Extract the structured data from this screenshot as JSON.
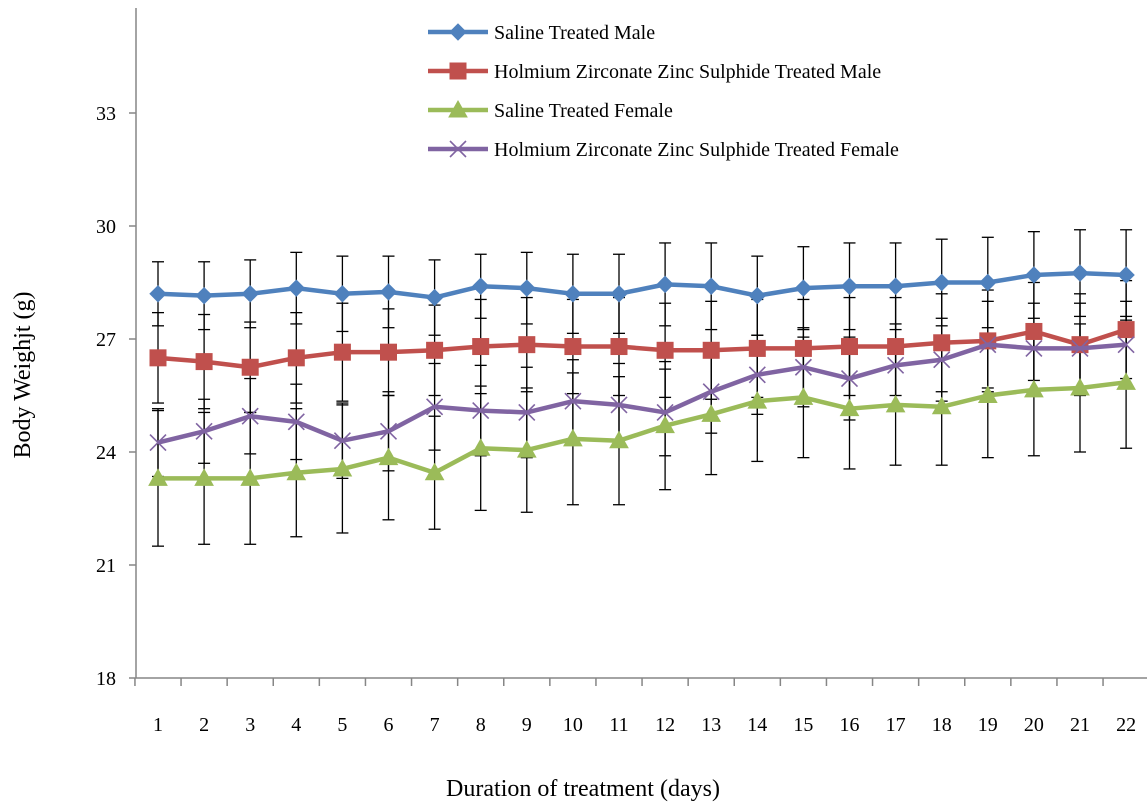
{
  "chart_data": {
    "type": "line",
    "title": "",
    "xlabel": "Duration of treatment (days)",
    "ylabel": "Body Weighjt (g)",
    "x": [
      1,
      2,
      3,
      4,
      5,
      6,
      7,
      8,
      9,
      10,
      11,
      12,
      13,
      14,
      15,
      16,
      17,
      18,
      19,
      20,
      21,
      22
    ],
    "ylim": [
      18,
      36
    ],
    "yticks": [
      18,
      21,
      24,
      27,
      30,
      33
    ],
    "grid": false,
    "legend_position": "top",
    "error_bars": true,
    "series": [
      {
        "name": "Saline Treated Male",
        "color": "#4F81BD",
        "marker": "diamond",
        "values": [
          28.2,
          28.15,
          28.2,
          28.35,
          28.2,
          28.25,
          28.1,
          28.4,
          28.35,
          28.2,
          28.2,
          28.45,
          28.4,
          28.15,
          28.35,
          28.4,
          28.4,
          28.5,
          28.5,
          28.7,
          28.75,
          28.7
        ],
        "errors": [
          0.85,
          0.9,
          0.9,
          0.95,
          1.0,
          0.95,
          1.0,
          0.85,
          0.95,
          1.05,
          1.05,
          1.1,
          1.15,
          1.05,
          1.1,
          1.15,
          1.15,
          1.15,
          1.2,
          1.15,
          1.15,
          1.2
        ]
      },
      {
        "name": "Holmium Zirconate Zinc Sulphide Treated Male",
        "color": "#C0504D",
        "marker": "square",
        "values": [
          26.5,
          26.4,
          26.25,
          26.5,
          26.65,
          26.65,
          26.7,
          26.8,
          26.85,
          26.8,
          26.8,
          26.7,
          26.7,
          26.75,
          26.75,
          26.8,
          26.8,
          26.9,
          26.95,
          27.2,
          26.85,
          27.25
        ],
        "errors": [
          1.2,
          1.25,
          1.2,
          1.2,
          1.3,
          1.15,
          1.2,
          1.25,
          1.25,
          1.25,
          1.3,
          1.25,
          1.3,
          1.3,
          1.3,
          1.3,
          1.3,
          1.3,
          1.35,
          1.3,
          1.35,
          1.3
        ]
      },
      {
        "name": "Saline Treated Female",
        "color": "#9BBB59",
        "marker": "triangle",
        "values": [
          23.3,
          23.3,
          23.3,
          23.45,
          23.55,
          23.85,
          23.45,
          24.1,
          24.05,
          24.35,
          24.3,
          24.7,
          25.0,
          25.35,
          25.45,
          25.15,
          25.25,
          25.2,
          25.5,
          25.65,
          25.7,
          25.85
        ],
        "errors": [
          1.8,
          1.75,
          1.75,
          1.7,
          1.7,
          1.65,
          1.5,
          1.65,
          1.65,
          1.75,
          1.7,
          1.7,
          1.6,
          1.6,
          1.6,
          1.6,
          1.6,
          1.55,
          1.65,
          1.75,
          1.7,
          1.75
        ]
      },
      {
        "name": "Holmium Zirconate Zinc Sulphide Treated Female",
        "color": "#8064A2",
        "marker": "x",
        "values": [
          24.25,
          24.55,
          24.95,
          24.8,
          24.3,
          24.55,
          25.2,
          25.1,
          25.05,
          25.35,
          25.25,
          25.05,
          25.6,
          26.05,
          26.25,
          25.95,
          26.3,
          26.45,
          26.85,
          26.75,
          26.75,
          26.85
        ],
        "errors": [
          0.9,
          0.85,
          1.0,
          1.0,
          1.0,
          1.05,
          1.15,
          1.2,
          1.2,
          1.1,
          1.1,
          1.15,
          1.1,
          1.05,
          1.05,
          1.1,
          1.1,
          1.1,
          1.15,
          1.2,
          1.2,
          1.15
        ]
      }
    ]
  }
}
